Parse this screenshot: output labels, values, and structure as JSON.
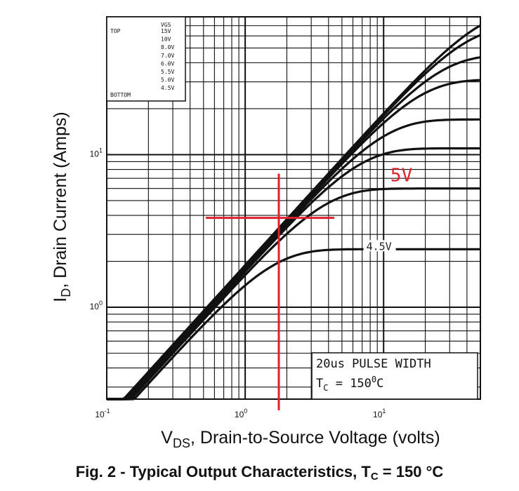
{
  "chart_data": {
    "type": "line",
    "xscale": "log",
    "yscale": "log",
    "xlim": [
      0.1,
      50
    ],
    "ylim": [
      0.25,
      80
    ],
    "xlabel": {
      "main": "V",
      "sub": "DS",
      "rest": ", Drain-to-Source Voltage (volts)"
    },
    "ylabel": {
      "main": "I",
      "sub": "D",
      "rest": ", Drain Current (Amps)"
    },
    "x_ticks": [
      {
        "value": 0.1,
        "base": "10",
        "exp": "-1"
      },
      {
        "value": 1,
        "base": "10",
        "exp": "0"
      },
      {
        "value": 10,
        "base": "10",
        "exp": "1"
      }
    ],
    "y_ticks": [
      {
        "value": 1,
        "base": "10",
        "exp": "0"
      },
      {
        "value": 10,
        "base": "10",
        "exp": "1"
      }
    ],
    "legend": {
      "placement": "top-left",
      "header": "VGS",
      "top_label": "TOP",
      "bottom_label": "BOTTOM",
      "entries": [
        "15V",
        "10V",
        "8.0V",
        "7.0V",
        "6.0V",
        "5.5V",
        "5.0V",
        "4.5V"
      ]
    },
    "series": [
      {
        "name": "15V",
        "ron": 0.53,
        "isat": 90
      },
      {
        "name": "10V",
        "ron": 0.54,
        "isat": 70
      },
      {
        "name": "8.0V",
        "ron": 0.55,
        "isat": 45
      },
      {
        "name": "7.0V",
        "ron": 0.56,
        "isat": 31
      },
      {
        "name": "6.0V",
        "ron": 0.57,
        "isat": 17
      },
      {
        "name": "5.5V",
        "ron": 0.58,
        "isat": 11
      },
      {
        "name": "5.0V",
        "ron": 0.6,
        "isat": 6.0
      },
      {
        "name": "4.5V",
        "ron": 0.63,
        "isat": 2.4
      }
    ],
    "curve_labels": [
      {
        "text": "4.5V",
        "x": 7.5,
        "y": 2.45,
        "color": "#222222"
      }
    ],
    "annotations": {
      "box_line1": "20us PULSE WIDTH",
      "box_line2_main": "T",
      "box_line2_sub": "C",
      "box_line2_rest": " = 150",
      "box_line2_sup": "0",
      "box_line2_unit": "C"
    },
    "overlay": {
      "label": "5V",
      "color": "#e0202a",
      "vertical_x": 1.75,
      "vertical_y_range": [
        0.23,
        7.5
      ],
      "horizontal_y": 3.85,
      "horizontal_x_range": [
        0.52,
        4.4
      ],
      "label_x": 11.2,
      "label_y": 6.7
    },
    "grid": true
  },
  "caption": {
    "main": "Fig. 2 - Typical Output Characteristics, T",
    "sub": "C",
    "tail": " = 150 °C"
  }
}
